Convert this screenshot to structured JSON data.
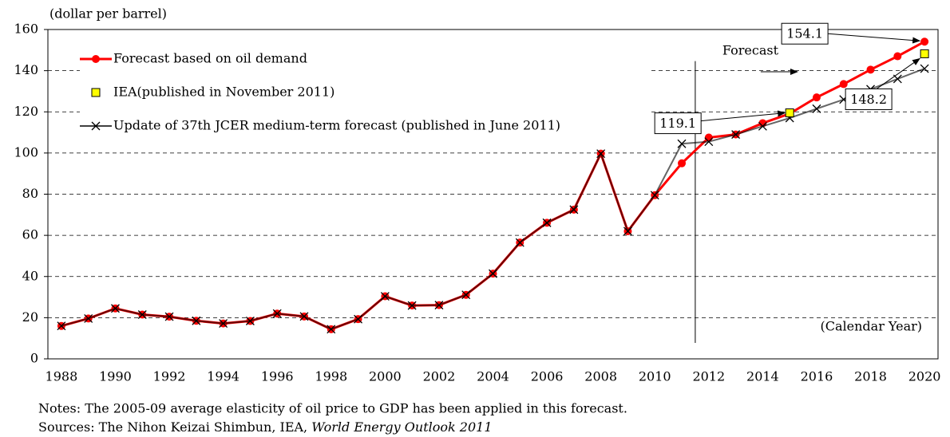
{
  "chart_data": {
    "type": "line",
    "y_label": "(dollar per barrel)",
    "x_label": "(Calendar Year)",
    "forecast_label": "Forecast",
    "notes": "Notes: The 2005-09 average elasticity of oil price to GDP has been applied in this forecast.",
    "sources": "Sources: The Nihon Keizai Shimbun, IEA, ",
    "sources_title": "World Energy Outlook 2011",
    "x": [
      1988,
      1989,
      1990,
      1991,
      1992,
      1993,
      1994,
      1995,
      1996,
      1997,
      1998,
      1999,
      2000,
      2001,
      2002,
      2003,
      2004,
      2005,
      2006,
      2007,
      2008,
      2009,
      2010,
      2011,
      2012,
      2013,
      2014,
      2015,
      2016,
      2017,
      2018,
      2019,
      2020
    ],
    "xlim": [
      1987.5,
      2020.5
    ],
    "xticks": [
      1988,
      1990,
      1992,
      1994,
      1996,
      1998,
      2000,
      2002,
      2004,
      2006,
      2008,
      2010,
      2012,
      2014,
      2016,
      2018,
      2020
    ],
    "ylim": [
      0,
      160
    ],
    "yticks": [
      0,
      20,
      40,
      60,
      80,
      100,
      120,
      140,
      160
    ],
    "grid": true,
    "series": [
      {
        "name": "Forecast based on oil demand",
        "color": "#ff0000",
        "marker": "circle",
        "line": true,
        "labeled_points": [
          27,
          32
        ],
        "values": [
          16,
          19.6,
          24.5,
          21.5,
          20.5,
          18.5,
          17.2,
          18.4,
          22,
          20.6,
          14.4,
          19.3,
          30.4,
          25.9,
          26.1,
          31.1,
          41.4,
          56.5,
          66.1,
          72.5,
          99.7,
          62,
          79.5,
          95,
          107.5,
          109,
          114.5,
          119.1,
          127,
          133.5,
          140.5,
          147,
          154.1
        ]
      },
      {
        "name": "IEA(published in November 2011)",
        "color": "#ffff00",
        "marker": "square",
        "line": false,
        "labeled_points": [
          32
        ],
        "values": [
          null,
          null,
          null,
          null,
          null,
          null,
          null,
          null,
          null,
          null,
          null,
          null,
          null,
          null,
          null,
          null,
          null,
          null,
          null,
          null,
          null,
          null,
          null,
          null,
          null,
          null,
          null,
          119.5,
          null,
          null,
          null,
          null,
          148.2
        ]
      },
      {
        "name": "Update of 37th JCER medium-term forecast (published in June 2011)",
        "color": "#000000",
        "marker": "x",
        "line": true,
        "labeled_points": [],
        "values": [
          16,
          19.6,
          24.5,
          21.5,
          20.5,
          18.5,
          17.2,
          18.4,
          22,
          20.6,
          14.4,
          19.3,
          30.4,
          25.9,
          26.1,
          31.1,
          41.4,
          56.5,
          66.1,
          72.5,
          99.7,
          62,
          79.5,
          104.5,
          105.5,
          109,
          113,
          117,
          121.5,
          126,
          131,
          136,
          141
        ]
      }
    ]
  }
}
